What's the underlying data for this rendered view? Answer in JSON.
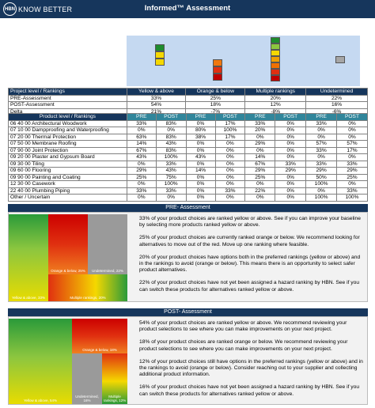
{
  "header": {
    "logo_mark": "HBN",
    "logo_text": "KNOW BETTER",
    "title": "Informed™ Assessment"
  },
  "summary": {
    "columns": [
      "Project level / Rankings",
      "Yellow & above",
      "Orange & below",
      "Multiple rankings",
      "Undetermined"
    ],
    "rows": [
      {
        "label": "PRE-Assessment",
        "values": [
          "33%",
          "25%",
          "20%",
          "22%"
        ]
      },
      {
        "label": "POST-Assessment",
        "values": [
          "54%",
          "18%",
          "12%",
          "16%"
        ]
      },
      {
        "label": "Delta",
        "values": [
          "21%",
          "-7%",
          "-8%",
          "-6%"
        ]
      }
    ]
  },
  "products": {
    "header": "Product level / Rankings",
    "pre": "PRE",
    "post": "POST",
    "rows": [
      {
        "label": "06 40 00 Architectural Woodwork",
        "values": [
          "33%",
          "83%",
          "0%",
          "17%",
          "33%",
          "0%",
          "33%",
          "0%"
        ]
      },
      {
        "label": "07 10 00 Dampproofing and Waterproofing",
        "values": [
          "0%",
          "0%",
          "80%",
          "100%",
          "20%",
          "0%",
          "0%",
          "0%"
        ]
      },
      {
        "label": "07 20 00 Thermal Protection",
        "values": [
          "63%",
          "83%",
          "38%",
          "17%",
          "0%",
          "0%",
          "0%",
          "0%"
        ]
      },
      {
        "label": "07 50 00 Membrane Roofing",
        "values": [
          "14%",
          "43%",
          "0%",
          "0%",
          "29%",
          "0%",
          "57%",
          "57%"
        ]
      },
      {
        "label": "07 90 00 Joint Protection",
        "values": [
          "67%",
          "83%",
          "0%",
          "0%",
          "0%",
          "0%",
          "33%",
          "17%"
        ]
      },
      {
        "label": "09 20 00 Plaster and Gypsum Board",
        "values": [
          "43%",
          "100%",
          "43%",
          "0%",
          "14%",
          "0%",
          "0%",
          "0%"
        ]
      },
      {
        "label": "09 30 00 Tiling",
        "values": [
          "0%",
          "33%",
          "0%",
          "0%",
          "67%",
          "33%",
          "33%",
          "33%"
        ]
      },
      {
        "label": "09 60 00 Flooring",
        "values": [
          "29%",
          "43%",
          "14%",
          "0%",
          "29%",
          "29%",
          "29%",
          "29%"
        ]
      },
      {
        "label": "09 90 00 Painting and Coating",
        "values": [
          "25%",
          "75%",
          "0%",
          "0%",
          "25%",
          "0%",
          "50%",
          "25%"
        ]
      },
      {
        "label": "12 30 00 Casework",
        "values": [
          "0%",
          "100%",
          "0%",
          "0%",
          "0%",
          "0%",
          "100%",
          "0%"
        ]
      },
      {
        "label": "22 40 00 Plumbing Piping",
        "values": [
          "33%",
          "33%",
          "0%",
          "33%",
          "22%",
          "0%",
          "0%",
          "33%"
        ]
      },
      {
        "label": "Other / Uncertain",
        "values": [
          "0%",
          "0%",
          "0%",
          "0%",
          "0%",
          "0%",
          "100%",
          "100%"
        ]
      }
    ]
  },
  "gauges": [
    {
      "segments": [
        "#1e8c2e",
        "#f5d800",
        "#f5d800"
      ],
      "empty": 1
    },
    {
      "segments": [
        "#f0780f",
        "#e03010",
        "#c00000"
      ],
      "empty": 0
    },
    {
      "segments": [
        "#1e8c2e",
        "#8cc63f",
        "#f5d800",
        "#f0a000",
        "#f07000",
        "#e03010",
        "#c00000"
      ],
      "empty": 0
    },
    {
      "segments": [
        "#a6a6a6"
      ],
      "empty": 0
    }
  ],
  "pre_panel": {
    "title": "PRE- Assessment",
    "tiles": {
      "yellow": "Yellow & above, 33%",
      "orange": "Orange & below, 25%",
      "undetermined": "Undetermined, 22%",
      "multiple": "Multiple rankings, 20%"
    },
    "paragraphs": [
      "33% of your product choices are ranked yellow or above. See if you can improve your baseline by selecting more products ranked yellow or above.",
      "25% of your product choices are currently ranked orange or below. We recommend looking for alternatives to move out of the red. Move up one ranking where feasible.",
      "20% of your product choices have options both in the preferred rankings (yellow or above) and in the rankings to avoid (orange or below). This means there is an opportunity to select safer product alternatives.",
      "22% of your product choices have not yet been assigned a hazard ranking by HBN. See if you can switch these products for alternatives ranked yellow or above."
    ]
  },
  "post_panel": {
    "title": "POST- Assessment",
    "tiles": {
      "yellow": "Yellow & above, 54%",
      "orange": "Orange & below, 18%",
      "undetermined": "Undetermined, 16%",
      "multiple": "Multiple rankings, 12%"
    },
    "paragraphs": [
      "54% of your product choices are ranked yellow or above. We recommend reviewing your product selections to see where you can make improvements on your next project.",
      "18% of your product choices are ranked orange or below. We recommend reviewing your product selections to see where you can make improvements on your next project.",
      "12% of your product choices still have options in the preferred rankings (yellow or above) and in the rankings to avoid (orange or below). Consider reaching out to your supplier and collecting additional product information.",
      "16% of your product choices have not yet been assigned a hazard ranking by HBN. See if you can switch these products for alternatives ranked yellow or above."
    ]
  },
  "colors": {
    "navy": "#16365c",
    "teal": "#31869b",
    "strip": "#c5d9f1"
  }
}
